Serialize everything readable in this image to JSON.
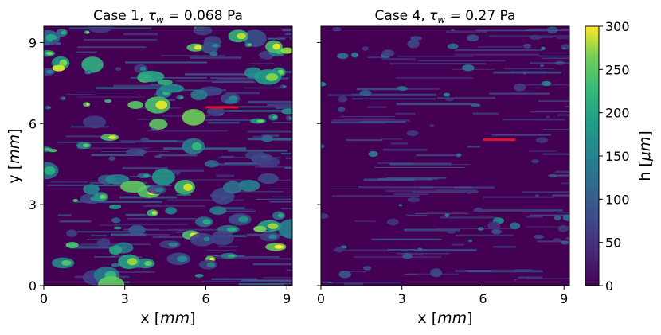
{
  "chart_data": [
    {
      "type": "heatmap",
      "title_prefix": "Case 1, ",
      "title_tau": "τ",
      "title_sub": "w",
      "title_value": " = 0.068 Pa",
      "xlabel_prefix": "x [",
      "xlabel_unit": "mm",
      "xlabel_suffix": "]",
      "ylabel_prefix": "y [",
      "ylabel_unit": "mm",
      "ylabel_suffix": "]",
      "xlim": [
        0,
        9.2
      ],
      "ylim": [
        0,
        9.6
      ],
      "xticks": [
        0,
        3,
        6,
        9
      ],
      "yticks": [
        0,
        3,
        6,
        9
      ],
      "red_marker": {
        "x": [
          6.0,
          7.2
        ],
        "y": 6.6
      },
      "density": "high"
    },
    {
      "type": "heatmap",
      "title_prefix": "Case 4, ",
      "title_tau": "τ",
      "title_sub": "w",
      "title_value": " = 0.27 Pa",
      "xlabel_prefix": "x [",
      "xlabel_unit": "mm",
      "xlabel_suffix": "]",
      "xlim": [
        0,
        9.2
      ],
      "ylim": [
        0,
        9.6
      ],
      "xticks": [
        0,
        3,
        6,
        9
      ],
      "yticks": [
        0,
        3,
        6,
        9
      ],
      "red_marker": {
        "x": [
          6.0,
          7.2
        ],
        "y": 5.4
      },
      "density": "low"
    }
  ],
  "colorbar": {
    "label_prefix": "h [",
    "label_unit": "μm",
    "label_suffix": "]",
    "min": 0,
    "max": 300,
    "ticks": [
      0,
      50,
      100,
      150,
      200,
      250,
      300
    ],
    "colormap": "viridis"
  },
  "colors": {
    "low": "#440154",
    "red_marker": "#e8102a"
  }
}
